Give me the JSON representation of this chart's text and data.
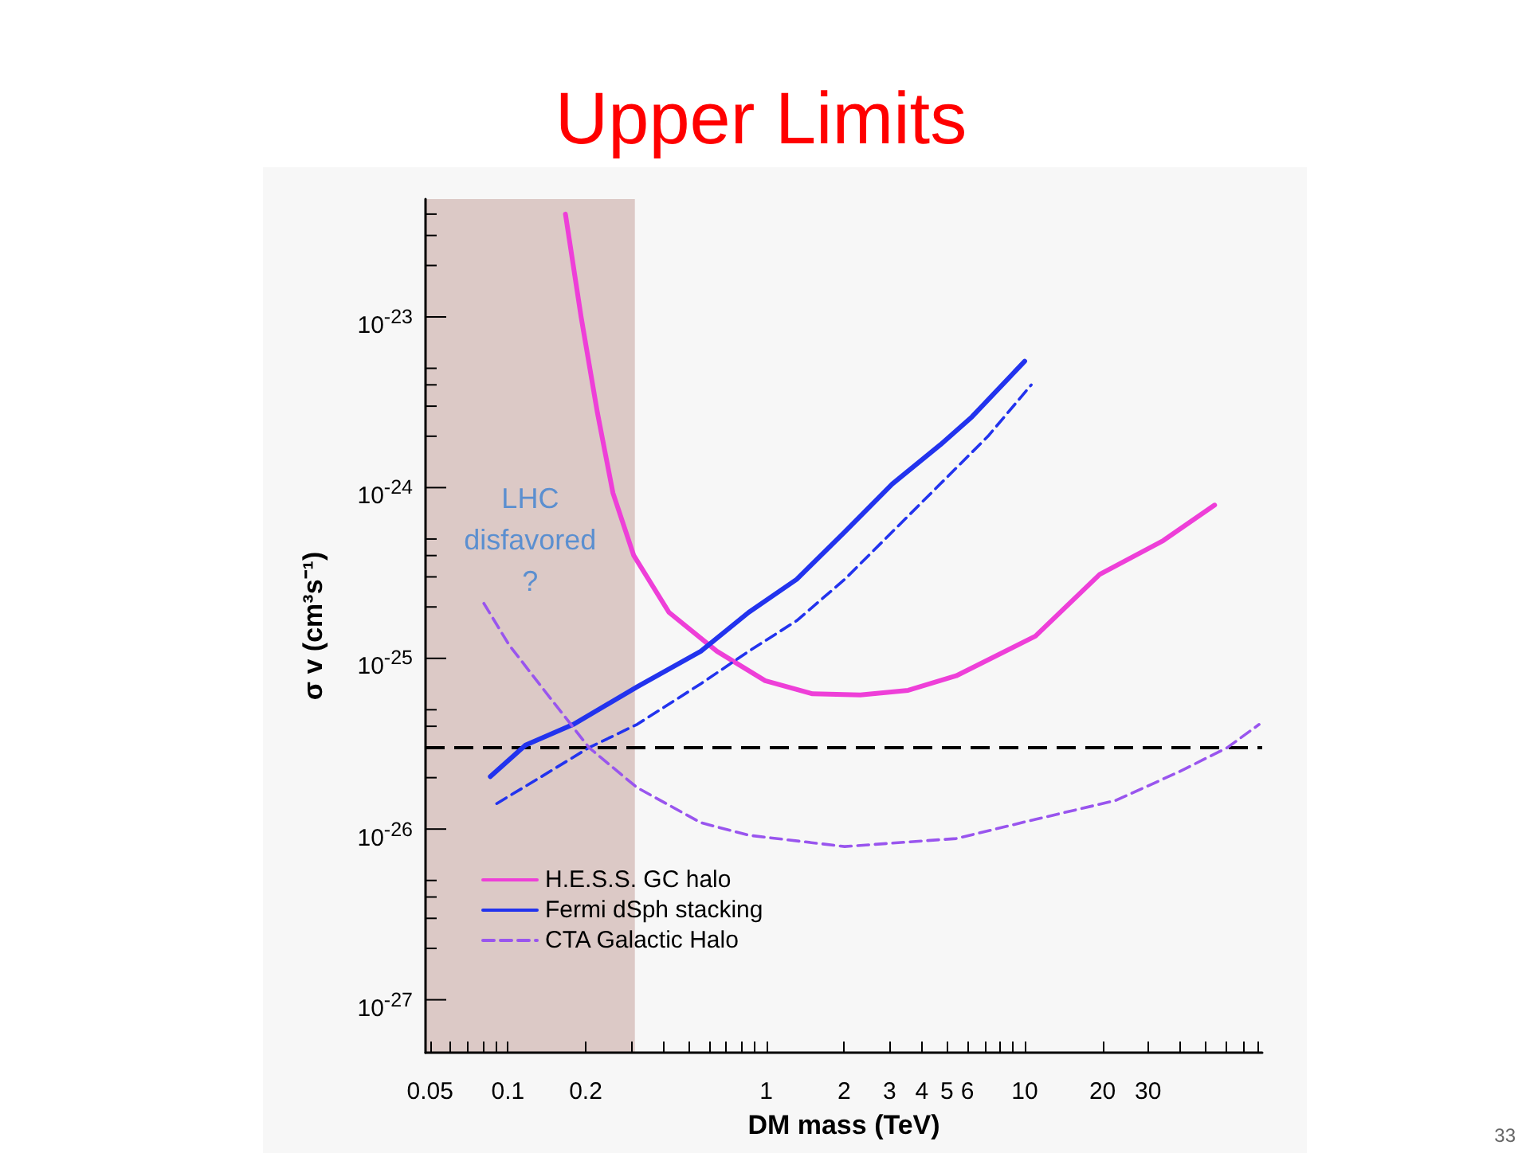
{
  "chart_data": {
    "type": "line",
    "title": "Upper Limits",
    "xlabel": "DM mass (TeV)",
    "ylabel": "σ v (cm³s⁻¹)",
    "log": "xy",
    "grid": false,
    "legend": "bottom left",
    "marker": "none",
    "xlim": [
      0.048,
      83
    ],
    "ylim": [
      4.9e-28,
      4.9e-23
    ],
    "xticks": [
      0.05,
      {
        "value": 0.06,
        "label": null
      },
      {
        "value": 0.07,
        "label": null
      },
      {
        "value": 0.08,
        "label": null
      },
      {
        "value": 0.09,
        "label": null
      },
      0.1,
      0.2,
      {
        "value": 0.3,
        "label": null
      },
      {
        "value": 0.4,
        "label": null
      },
      {
        "value": 0.5,
        "label": null
      },
      {
        "value": 0.6,
        "label": null
      },
      {
        "value": 0.7,
        "label": null
      },
      {
        "value": 0.8,
        "label": null
      },
      {
        "value": 0.9,
        "label": null
      },
      1,
      2,
      3,
      4,
      5,
      6,
      {
        "value": 7,
        "label": null
      },
      {
        "value": 8,
        "label": null
      },
      {
        "value": 9,
        "label": null
      },
      10,
      20,
      30,
      {
        "value": 40,
        "label": null
      },
      {
        "value": 50,
        "label": null
      },
      {
        "value": 60,
        "label": null
      },
      {
        "value": 70,
        "label": null
      },
      {
        "value": 80,
        "label": null
      }
    ],
    "yticks": [
      {
        "value": 1e-27,
        "label": "10$^{-27}$"
      },
      {
        "value": 2e-27,
        "label": null
      },
      {
        "value": 3e-27,
        "label": null
      },
      {
        "value": 4e-27,
        "label": null
      },
      {
        "value": 5e-27,
        "label": null
      },
      {
        "value": 1e-26,
        "label": "10$^{-26}$"
      },
      {
        "value": 2e-26,
        "label": null
      },
      {
        "value": 3e-26,
        "label": null
      },
      {
        "value": 4e-26,
        "label": null
      },
      {
        "value": 5e-26,
        "label": null
      },
      {
        "value": 1e-25,
        "label": "10$^{-25}$"
      },
      {
        "value": 2e-25,
        "label": null
      },
      {
        "value": 3e-25,
        "label": null
      },
      {
        "value": 4e-25,
        "label": null
      },
      {
        "value": 5e-25,
        "label": null
      },
      {
        "value": 1e-24,
        "label": "10$^{-24}$"
      },
      {
        "value": 2e-24,
        "label": null
      },
      {
        "value": 3e-24,
        "label": null
      },
      {
        "value": 4e-24,
        "label": null
      },
      {
        "value": 5e-24,
        "label": null
      },
      {
        "value": 1e-23,
        "label": "10$^{-23}$"
      },
      {
        "value": 2e-23,
        "label": null
      },
      {
        "value": 3e-23,
        "label": null
      },
      {
        "value": 4e-23,
        "label": null
      }
    ],
    "series": [
      {
        "name": "H.E.S.S. GC halo",
        "color": "#ee3fd8",
        "line_style": "solid",
        "x": [
          0.167,
          0.192,
          0.222,
          0.255,
          0.307,
          0.42,
          0.644,
          0.99,
          1.51,
          2.31,
          3.54,
          5.43,
          11,
          19.5,
          34.4,
          54.3
        ],
        "values": [
          4e-23,
          1e-23,
          2.75e-24,
          9.3e-25,
          4e-25,
          1.86e-25,
          1.1e-25,
          7.4e-26,
          6.2e-26,
          6.1e-26,
          6.5e-26,
          7.9e-26,
          1.35e-25,
          3.1e-25,
          4.9e-25,
          7.9e-25
        ]
      },
      {
        "name": "Fermi dSph stacking",
        "color": "#2233ee",
        "line_style": "solid",
        "x": [
          0.0855,
          0.117,
          0.179,
          0.316,
          0.558,
          0.855,
          1.31,
          2.01,
          3.07,
          4.71,
          6.25,
          10
        ],
        "values": [
          2.03e-26,
          3.1e-26,
          4.1e-26,
          6.8e-26,
          1.1e-25,
          1.86e-25,
          2.9e-25,
          5.5e-25,
          1.05e-24,
          1.78e-24,
          2.6e-24,
          5.5e-24
        ]
      },
      {
        "color": "#2233ee",
        "line_style": "dashed",
        "x": [
          0.0905,
          0.135,
          0.206,
          0.316,
          0.558,
          0.855,
          1.31,
          2.01,
          3.07,
          4.71,
          7.21,
          10.6
        ],
        "values": [
          1.41e-26,
          2.03e-26,
          3e-26,
          4.1e-26,
          7.1e-26,
          1.1e-25,
          1.66e-25,
          2.9e-25,
          5.5e-25,
          1.05e-24,
          2e-24,
          4e-24
        ]
      },
      {
        "name": "CTA Galactic Halo",
        "color": "#9955ee",
        "line_style": "dashed",
        "x": [
          0.0807,
          0.101,
          0.135,
          0.206,
          0.316,
          0.558,
          0.855,
          2.01,
          5.43,
          11,
          22.5,
          39.7,
          60.8,
          80.7
        ],
        "values": [
          2.1e-25,
          1.2e-25,
          6.8e-26,
          3e-26,
          1.75e-26,
          1.09e-26,
          9.2e-27,
          7.9e-27,
          8.8e-27,
          1.14e-26,
          1.47e-26,
          2.17e-26,
          3e-26,
          4.1e-26
        ]
      }
    ],
    "ref_lines": [
      {
        "axis": "y",
        "value": 3e-26,
        "color": "#000000",
        "line_style": "dashed"
      }
    ],
    "bands": [
      {
        "axis": "x",
        "from": 0.048,
        "to": 0.31,
        "color": "#dcc9c6",
        "label": "LHC\ndisfavored\n?"
      }
    ],
    "annotations": [
      "33"
    ]
  }
}
